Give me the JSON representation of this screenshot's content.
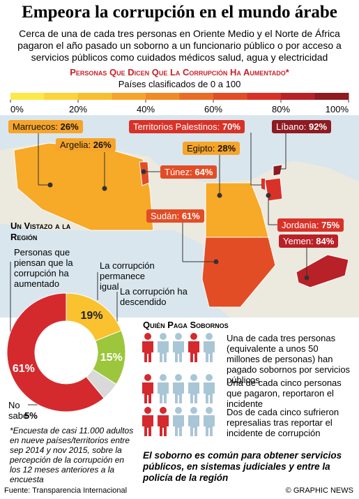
{
  "header": {
    "title": "Empeora la corrupción en el mundo árabe",
    "subtitle": "Cerca de una de cada tres personas en Oriente Medio y el Norte de África pagaron el año pasado un soborno a un funcionario público o por acceso a servicios públicos como cuidados médicos salud, agua y electricidad"
  },
  "scale": {
    "title": "Personas Que Dicen Que La Corrupción Ha Aumentado*",
    "subtitle": "Países clasificados de 0 a 100",
    "labels": [
      "0%",
      "20%",
      "40%",
      "60%",
      "80%",
      "100%"
    ],
    "colors": [
      "#fde84a",
      "#fbd33a",
      "#f9be30",
      "#f6a52a",
      "#f08a26",
      "#ea6c24",
      "#e24d26",
      "#d83228",
      "#b82127",
      "#8e1b22"
    ]
  },
  "map": {
    "countries": [
      {
        "name": "Marruecos:",
        "value": "26%",
        "color": "#f6a52a"
      },
      {
        "name": "Argelia:",
        "value": "26%",
        "color": "#f6a52a"
      },
      {
        "name": "Territorios Palestinos:",
        "value": "70%",
        "color": "#d83228"
      },
      {
        "name": "Líbano:",
        "value": "92%",
        "color": "#8e1b22"
      },
      {
        "name": "Egipto:",
        "value": "28%",
        "color": "#f6a52a"
      },
      {
        "name": "Túnez:",
        "value": "64%",
        "color": "#e24d26"
      },
      {
        "name": "Sudán:",
        "value": "61%",
        "color": "#e24d26"
      },
      {
        "name": "Jordania:",
        "value": "75%",
        "color": "#d83228"
      },
      {
        "name": "Yemen:",
        "value": "84%",
        "color": "#b82127"
      }
    ]
  },
  "chart_data": {
    "type": "pie",
    "title": "Un Vistazo a la Región",
    "categories": [
      "Personas que piensan que la corrupción ha aumentado",
      "La corrupción permanece igual",
      "La corrupción ha descendido",
      "No sabe"
    ],
    "values": [
      61,
      19,
      15,
      5
    ],
    "value_labels": [
      "61%",
      "19%",
      "15%",
      "5%"
    ],
    "colors": [
      "#d42a2e",
      "#f9c22e",
      "#9cc63b",
      "#d9d9d9"
    ]
  },
  "bribes": {
    "title": "Quién Paga Sobornos",
    "items": [
      "Una de cada tres personas (equivalente a unos 50 millones de personas) han pagado sobornos por servicios públicos",
      "Una de cada cinco personas que pagaron, reportaron el incidente",
      "Dos de cada cinco sufrieron represalias tras reportar el incidente de corrupción"
    ],
    "conclusion": "El soborno es común para obtener servicios públicos, en sistemas judiciales y entre la policía de la región"
  },
  "note": "*Encuesta de casi 11.000 adultos en nueve países/territorios entre sep 2014 y nov 2015, sobre la percepción de la corrupción en los 12 meses anteriores a la encuesta",
  "footer": {
    "source": "Fuente: Transparencia Internacional",
    "credit": "© GRAPHIC NEWS"
  }
}
